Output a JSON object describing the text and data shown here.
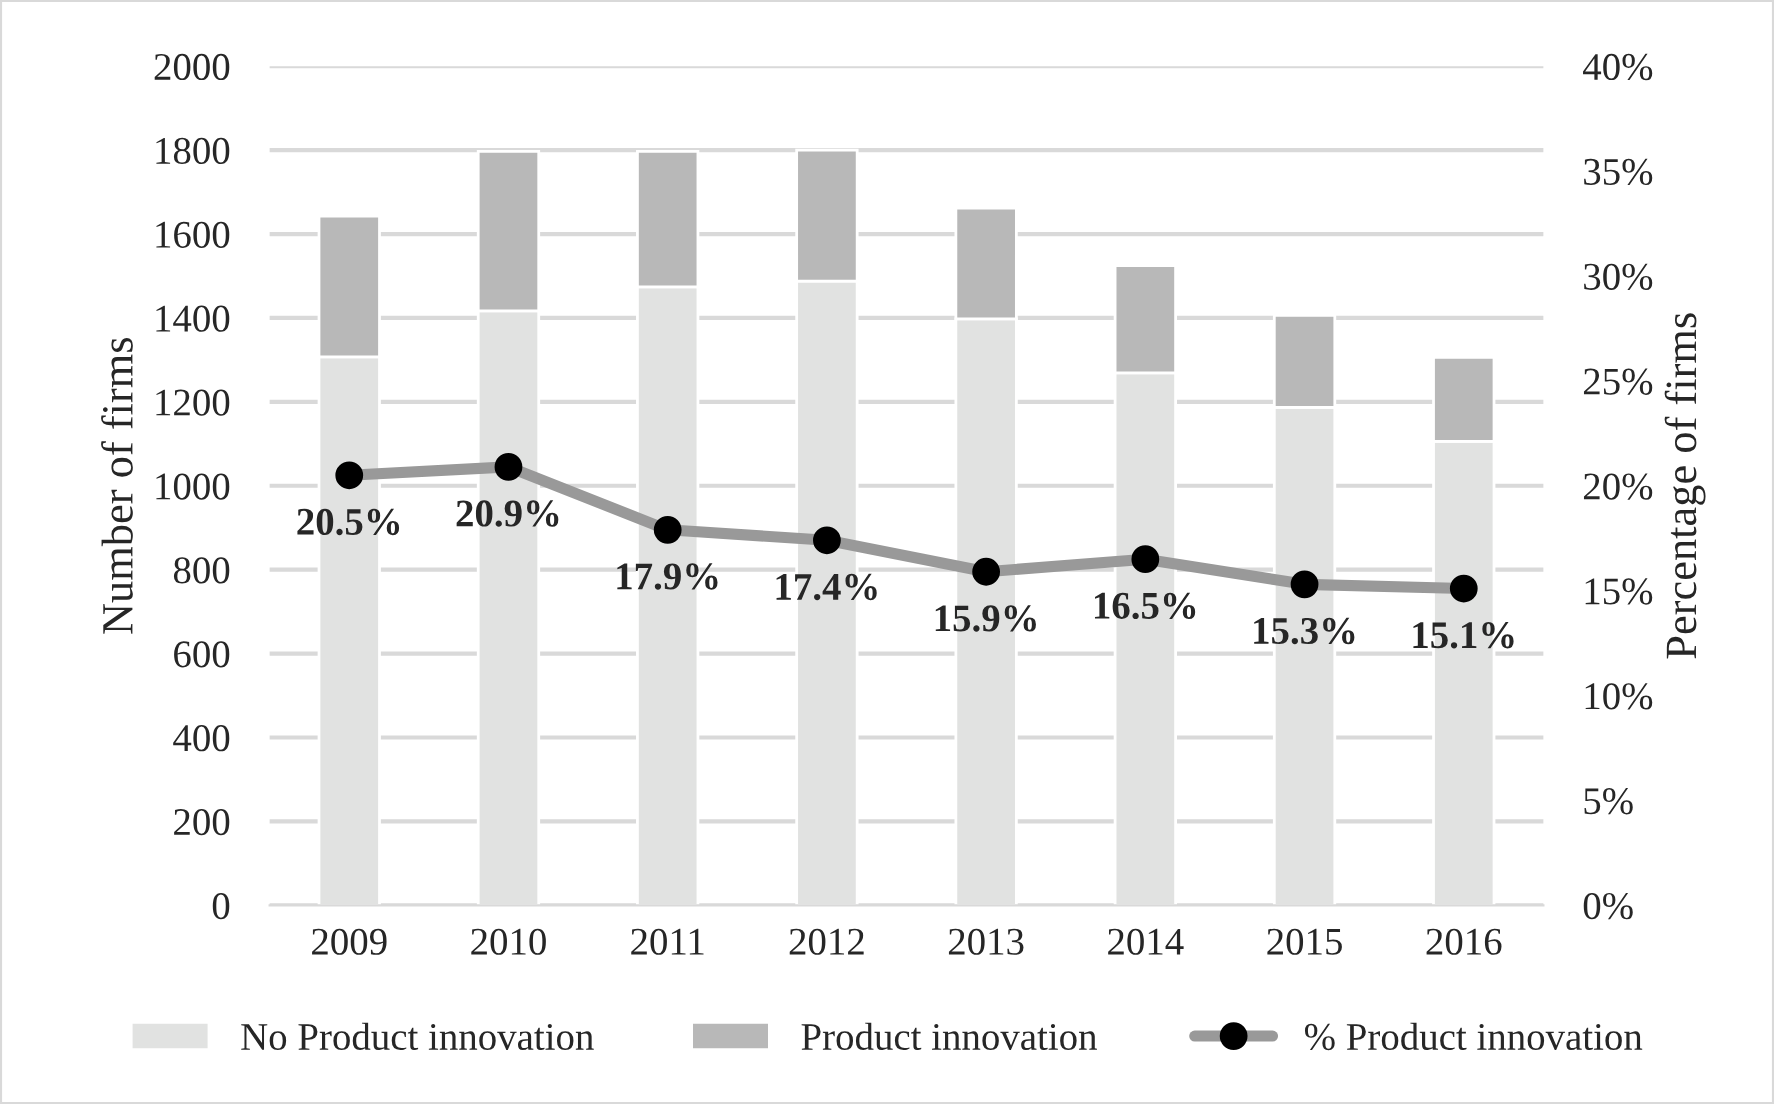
{
  "chart_data": {
    "type": "bar",
    "stacked": true,
    "categories": [
      "2009",
      "2010",
      "2011",
      "2012",
      "2013",
      "2014",
      "2015",
      "2016"
    ],
    "ylabel": "Number of firms",
    "y2label": "Percentage of firms",
    "ylim": [
      0,
      2000
    ],
    "yticks": [
      0,
      200,
      400,
      600,
      800,
      1000,
      1200,
      1400,
      1600,
      1800,
      2000
    ],
    "y2lim": [
      0,
      40
    ],
    "y2ticks": [
      {
        "value": 0,
        "label": "0%"
      },
      {
        "value": 5,
        "label": "5%"
      },
      {
        "value": 10,
        "label": "10%"
      },
      {
        "value": 15,
        "label": "15%"
      },
      {
        "value": 20,
        "label": "20%"
      },
      {
        "value": 25,
        "label": "25%"
      },
      {
        "value": 30,
        "label": "30%"
      },
      {
        "value": 35,
        "label": "35%"
      },
      {
        "value": 40,
        "label": "40%"
      }
    ],
    "grid": "y",
    "legend": "bottom",
    "series": [
      {
        "name": "No Product innovation",
        "color": "#e1e2e1",
        "values": [
          1307,
          1417,
          1474,
          1488,
          1398,
          1269,
          1187,
          1106
        ]
      },
      {
        "name": "Product innovation",
        "color": "#b8b8b8",
        "values": [
          336,
          380,
          323,
          312,
          264,
          256,
          219,
          200
        ]
      },
      {
        "name": "% Product innovation",
        "type": "line",
        "axis": "y2",
        "color": "#999999",
        "marker": "circle",
        "values": [
          20.5,
          20.9,
          17.9,
          17.4,
          15.9,
          16.5,
          15.3,
          15.1
        ],
        "value_labels": [
          "20.5%",
          "20.9%",
          "17.9%",
          "17.4%",
          "15.9%",
          "16.5%",
          "15.3%",
          "15.1%"
        ]
      }
    ]
  }
}
